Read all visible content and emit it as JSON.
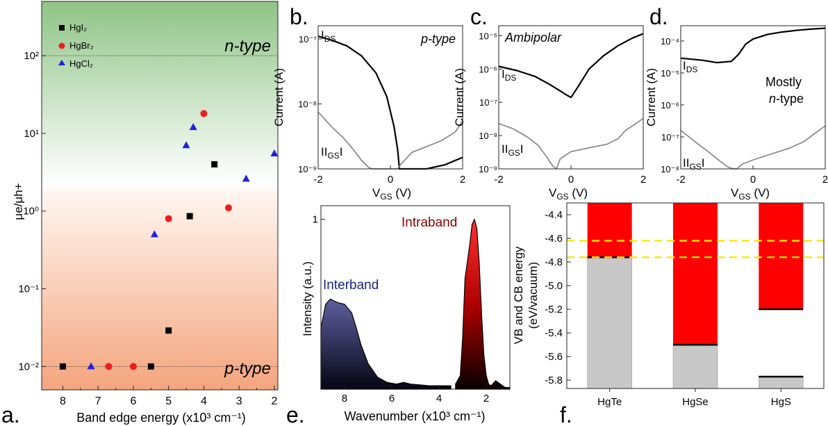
{
  "chart_data": [
    {
      "id": "a",
      "panel_label": "a.",
      "type": "scatter",
      "xlabel": "Band edge energy (x10³ cm⁻¹)",
      "ylabel": "μe/μh+",
      "xlim": [
        8.6,
        1.9
      ],
      "ylim": [
        0.005,
        500
      ],
      "yscale": "log",
      "xticks": [
        "8",
        "7",
        "6",
        "5",
        "4",
        "3",
        "2"
      ],
      "yticks": [
        "10⁻²",
        "10⁻¹",
        "10⁰",
        "10¹",
        "10²"
      ],
      "region_labels": {
        "top": "n-type",
        "bottom": "p-type"
      },
      "reference_lines": [
        0.01,
        100
      ],
      "legend_position": "top-left",
      "series": [
        {
          "name": "HgI₂",
          "marker": "square",
          "color": "#000000",
          "x": [
            8.0,
            5.5,
            5.0,
            4.4,
            3.7
          ],
          "y": [
            0.01,
            0.01,
            0.029,
            0.86,
            4.0
          ]
        },
        {
          "name": "HgBr₂",
          "marker": "circle",
          "color": "#ee1c1c",
          "x": [
            6.7,
            6.0,
            5.0,
            4.0,
            3.3
          ],
          "y": [
            0.01,
            0.01,
            0.8,
            18,
            1.1
          ]
        },
        {
          "name": "HgCl₂",
          "marker": "triangle",
          "color": "#1f1fe0",
          "x": [
            7.2,
            5.4,
            4.5,
            4.3,
            2.8,
            2.0
          ],
          "y": [
            0.01,
            0.5,
            7,
            12,
            2.6,
            5.5
          ]
        }
      ]
    },
    {
      "id": "b",
      "panel_label": "b.",
      "type": "line",
      "ylabel": "Current (A)",
      "xlabel": "VGS (V)",
      "xlim": [
        -2,
        2
      ],
      "ylim": [
        1e-09,
        1.6e-07
      ],
      "yscale": "log",
      "xticks": [
        "-2",
        "0",
        "2"
      ],
      "yticks": [
        "10⁻⁹",
        "10⁻⁸",
        "10⁻⁷"
      ],
      "annotation": "p-type",
      "series": [
        {
          "name": "IDS",
          "color": "#000000",
          "x": [
            -2,
            -1.6,
            -1.2,
            -0.8,
            -0.4,
            -0.1,
            0.1,
            0.2,
            0.25,
            1.0,
            1.5,
            2.0
          ],
          "y": [
            1.1e-07,
            9.5e-08,
            7.8e-08,
            5.5e-08,
            3e-08,
            1.3e-08,
            4.5e-09,
            2e-09,
            1e-09,
            1e-09,
            1.15e-09,
            1.5e-09
          ]
        },
        {
          "name": "|IGS|",
          "color": "#8c8c8c",
          "x": [
            -2,
            -1.6,
            -1.3,
            -1.0,
            -0.8,
            -0.6,
            -0.5,
            0.2,
            0.3,
            0.6,
            1.0,
            1.4,
            1.8,
            2.0
          ],
          "y": [
            7.5e-09,
            4.3e-09,
            3e-09,
            1.9e-09,
            1.35e-09,
            1.05e-09,
            1e-09,
            1e-09,
            1.2e-09,
            1.8e-09,
            2.2e-09,
            2.7e-09,
            3.7e-09,
            5.5e-09
          ]
        }
      ]
    },
    {
      "id": "c",
      "panel_label": "c.",
      "type": "line",
      "ylabel": "Current (A)",
      "xlabel": "VGS (V)",
      "xlim": [
        -2,
        2
      ],
      "ylim": [
        1e-09,
        2e-05
      ],
      "yscale": "log",
      "xticks": [
        "-2",
        "0",
        "2"
      ],
      "yticks": [
        "10⁻⁹",
        "10⁻⁸",
        "10⁻⁷",
        "10⁻⁶",
        "10⁻⁵"
      ],
      "annotation": "Ambipolar",
      "series": [
        {
          "name": "IDS",
          "color": "#000000",
          "x": [
            -2,
            -1.5,
            -1.0,
            -0.6,
            -0.3,
            -0.1,
            0.0,
            0.2,
            0.5,
            0.9,
            1.3,
            1.7,
            2.0
          ],
          "y": [
            1.2e-06,
            9e-07,
            6e-07,
            3.5e-07,
            2.2e-07,
            1.6e-07,
            1.4e-07,
            3e-07,
            1e-06,
            2.5e-06,
            5e-06,
            8.5e-06,
            1.15e-05
          ]
        },
        {
          "name": "|IGS|",
          "color": "#8c8c8c",
          "x": [
            -2,
            -1.6,
            -1.2,
            -0.9,
            -0.7,
            -0.5,
            -0.4,
            -0.3,
            0.0,
            0.5,
            1.0,
            1.3,
            1.5,
            1.8,
            2.0
          ],
          "y": [
            2.3e-08,
            1.6e-08,
            9e-09,
            5e-09,
            2.5e-09,
            1.2e-09,
            1e-09,
            2e-09,
            3.3e-09,
            4.3e-09,
            5.5e-09,
            8e-09,
            1.4e-08,
            2.3e-08,
            3.3e-08
          ]
        }
      ]
    },
    {
      "id": "d",
      "panel_label": "d.",
      "type": "line",
      "ylabel": "Current (A)",
      "xlabel": "VGS (V)",
      "xlim": [
        -2,
        2
      ],
      "ylim": [
        1e-08,
        0.0003
      ],
      "yscale": "log",
      "xticks": [
        "-2",
        "0",
        "2"
      ],
      "yticks": [
        "10⁻⁸",
        "10⁻⁷",
        "10⁻⁶",
        "10⁻⁵",
        "10⁻⁴"
      ],
      "annotation": "Mostly n-type",
      "series": [
        {
          "name": "IDS",
          "color": "#000000",
          "x": [
            -2,
            -1.4,
            -1.0,
            -0.6,
            -0.4,
            -0.2,
            0.0,
            0.4,
            0.8,
            1.2,
            1.6,
            2.0
          ],
          "y": [
            2.9e-05,
            2.5e-05,
            2.1e-05,
            2.3e-05,
            3.8e-05,
            8e-05,
            0.000115,
            0.00016,
            0.00019,
            0.000215,
            0.000235,
            0.00025
          ]
        },
        {
          "name": "|IGS|",
          "color": "#8c8c8c",
          "x": [
            -2,
            -1.6,
            -1.2,
            -0.9,
            -0.7,
            -0.55,
            -0.45,
            -0.3,
            0.0,
            0.5,
            1.0,
            1.4,
            1.7,
            2.0
          ],
          "y": [
            1.6e-07,
            7e-08,
            3.2e-08,
            1.7e-08,
            1.15e-08,
            1e-08,
            1e-08,
            1.4e-08,
            1.9e-08,
            2.9e-08,
            4.4e-08,
            7e-08,
            1.25e-07,
            2.2e-07
          ]
        }
      ]
    },
    {
      "id": "e",
      "panel_label": "e.",
      "type": "area",
      "ylabel": "Intensity (a.u.)",
      "xlabel": "Wavenumber (x10³ cm⁻¹)",
      "xlim": [
        9,
        1
      ],
      "ylim": [
        0,
        1.08
      ],
      "xticks": [
        "8",
        "6",
        "4",
        "2"
      ],
      "yticks": [
        "1"
      ],
      "series": [
        {
          "name": "Interband",
          "color": "#1a237e",
          "x": [
            9.0,
            8.8,
            8.6,
            8.3,
            8.0,
            7.7,
            7.5,
            7.3,
            7.0,
            6.6,
            6.2,
            5.8,
            5.5,
            5.2,
            4.8,
            4.4,
            4.0,
            3.5
          ],
          "y": [
            0.36,
            0.5,
            0.53,
            0.51,
            0.5,
            0.45,
            0.36,
            0.26,
            0.15,
            0.07,
            0.04,
            0.03,
            0.04,
            0.03,
            0.025,
            0.02,
            0.02,
            0.02
          ]
        },
        {
          "name": "Intraband",
          "color": "#8b0000",
          "x": [
            3.3,
            3.1,
            3.0,
            2.9,
            2.8,
            2.7,
            2.6,
            2.5,
            2.4,
            2.3,
            2.2,
            2.1,
            2.0,
            1.9,
            1.8,
            1.6,
            1.4,
            1.2,
            1.0
          ],
          "y": [
            0.03,
            0.08,
            0.3,
            0.65,
            0.75,
            0.85,
            0.97,
            1.0,
            0.95,
            0.75,
            0.45,
            0.2,
            0.08,
            0.03,
            0.02,
            0.05,
            0.03,
            0.01,
            0.01
          ]
        }
      ]
    },
    {
      "id": "f",
      "panel_label": "f.",
      "type": "bar",
      "ylabel": "VB and CB energy (eV/vacuum)",
      "categories": [
        "HgTe",
        "HgSe",
        "HgS"
      ],
      "ylim": [
        -5.87,
        -4.3
      ],
      "yticks": [
        "-4.4",
        "-4.6",
        "-4.8",
        "-5.0",
        "-5.2",
        "-5.4",
        "-5.6",
        "-5.8"
      ],
      "series": [
        {
          "name": "",
          "color": "#ff0000",
          "values": [
            -4.76,
            -5.5,
            -5.2
          ]
        },
        {
          "name": "",
          "color": "#c8c8c8",
          "values": [
            -4.76,
            -5.5,
            -5.77
          ]
        }
      ],
      "reference_lines": [
        -4.62,
        -4.76
      ],
      "reference_color": "#ffe600"
    }
  ]
}
